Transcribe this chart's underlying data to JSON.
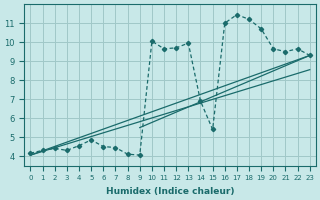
{
  "xlabel": "Humidex (Indice chaleur)",
  "ylabel": "",
  "bg_color": "#c8e8e8",
  "grid_color": "#a0c8c8",
  "line_color": "#1a6b6b",
  "xlim": [
    -0.5,
    23.5
  ],
  "ylim": [
    3.5,
    12
  ],
  "x_ticks": [
    0,
    1,
    2,
    3,
    4,
    5,
    6,
    7,
    8,
    9,
    10,
    11,
    12,
    13,
    14,
    15,
    16,
    17,
    18,
    19,
    20,
    21,
    22,
    23
  ],
  "y_ticks": [
    4,
    5,
    6,
    7,
    8,
    9,
    10,
    11
  ],
  "data_x": [
    0,
    1,
    2,
    3,
    4,
    5,
    6,
    7,
    8,
    9,
    10,
    11,
    12,
    13,
    14,
    15,
    16,
    17,
    18,
    19,
    20,
    21,
    22,
    23
  ],
  "data_y": [
    4.15,
    4.3,
    4.4,
    4.3,
    4.55,
    4.85,
    4.5,
    4.45,
    4.1,
    4.05,
    10.05,
    9.65,
    9.7,
    9.95,
    6.9,
    5.4,
    11.0,
    11.45,
    11.2,
    10.7,
    9.65,
    9.5,
    9.65,
    9.3
  ],
  "trend1_x": [
    0,
    23
  ],
  "trend1_y": [
    4.05,
    9.3
  ],
  "trend2_x": [
    0,
    23
  ],
  "trend2_y": [
    4.05,
    8.55
  ],
  "trend3_x": [
    9,
    23
  ],
  "trend3_y": [
    5.5,
    9.3
  ]
}
